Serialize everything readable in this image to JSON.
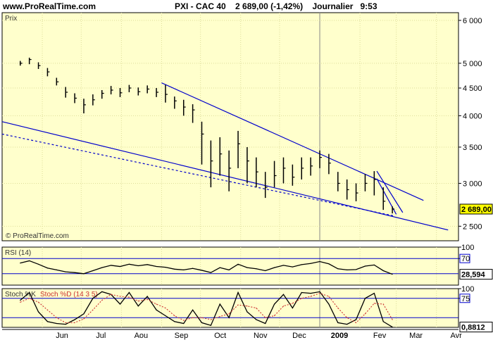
{
  "header": {
    "site": "www.ProRealTime.com",
    "instrument": "PXI - CAC 40",
    "price": "2 689,00",
    "change": "(-1,42%)",
    "period": "Journalier",
    "time": "9:53"
  },
  "watermark": "© ProRealTime.com",
  "colors": {
    "panel_bg": "#ffffcc",
    "candles": "#000000",
    "trendlines": "#0000cc",
    "highlight": "#ffff00",
    "stoch_k": "#000000",
    "stoch_d": "#cc3333"
  },
  "chart_data": [
    {
      "type": "candlestick",
      "title": "Prix",
      "ylim": [
        2350,
        6200
      ],
      "y_ticks": [
        "6 000",
        "5 000",
        "4 500",
        "4 000",
        "3 500",
        "3 000",
        "2 500"
      ],
      "y_tick_values": [
        6000,
        5000,
        4500,
        4000,
        3500,
        3000,
        2500
      ],
      "last_price_label": "2 689,00",
      "last_price": 2689,
      "x_labels": [
        "Jun",
        "Jul",
        "Aou",
        "Sep",
        "Oct",
        "Nov",
        "Dec",
        "2009",
        "Fev",
        "Mar",
        "Avr"
      ],
      "x_dates": [
        "2008-06-01",
        "2008-07-01",
        "2008-08-01",
        "2008-09-01",
        "2008-10-01",
        "2008-11-01",
        "2008-12-01",
        "2009-01-01",
        "2009-02-01",
        "2009-03-01",
        "2009-04-01"
      ],
      "series": [
        {
          "x": [
            "2008-05-15",
            "2008-05-22",
            "2008-05-29",
            "2008-06-05",
            "2008-06-12",
            "2008-06-19",
            "2008-06-26",
            "2008-07-03",
            "2008-07-10",
            "2008-07-17",
            "2008-07-24",
            "2008-07-31",
            "2008-08-07",
            "2008-08-14",
            "2008-08-21",
            "2008-08-28",
            "2008-09-04",
            "2008-09-11",
            "2008-09-18",
            "2008-09-25",
            "2008-10-02",
            "2008-10-09",
            "2008-10-16",
            "2008-10-23",
            "2008-10-30",
            "2008-11-06",
            "2008-11-13",
            "2008-11-20",
            "2008-11-27",
            "2008-12-04",
            "2008-12-11",
            "2008-12-18",
            "2008-12-25",
            "2009-01-01",
            "2009-01-08",
            "2009-01-15",
            "2009-01-22",
            "2009-01-29",
            "2009-02-05",
            "2009-02-12",
            "2009-02-19",
            "2009-02-26"
          ],
          "values": [
            5000,
            5080,
            4950,
            4820,
            4620,
            4420,
            4310,
            4190,
            4280,
            4400,
            4460,
            4410,
            4500,
            4430,
            4480,
            4420,
            4380,
            4260,
            4150,
            4100,
            3700,
            3300,
            3400,
            3200,
            3550,
            3300,
            3150,
            2950,
            3100,
            3200,
            3080,
            3200,
            3230,
            3350,
            3270,
            3000,
            2920,
            2880,
            3000,
            3050,
            2780,
            2689
          ],
          "high": [
            5050,
            5120,
            5020,
            4900,
            4700,
            4520,
            4400,
            4300,
            4380,
            4460,
            4540,
            4500,
            4560,
            4510,
            4550,
            4500,
            4560,
            4340,
            4280,
            4200,
            3900,
            3600,
            3650,
            3450,
            3750,
            3500,
            3350,
            3150,
            3300,
            3350,
            3250,
            3350,
            3350,
            3450,
            3400,
            3150,
            3050,
            3000,
            3120,
            3160,
            2950,
            2720
          ],
          "low": [
            4950,
            4980,
            4880,
            4730,
            4550,
            4320,
            4220,
            4040,
            4180,
            4300,
            4380,
            4330,
            4420,
            4360,
            4400,
            4330,
            4230,
            4120,
            4000,
            3880,
            3250,
            2950,
            3100,
            2900,
            3200,
            3000,
            2950,
            2820,
            2950,
            3000,
            2970,
            3050,
            3100,
            3200,
            3120,
            2900,
            2800,
            2780,
            2900,
            2850,
            2680,
            2640
          ]
        }
      ]
    },
    {
      "type": "line",
      "title": "RSI (14)",
      "ylim": [
        0,
        100
      ],
      "y_ticks": [
        "100",
        "70"
      ],
      "y_tick_values": [
        100,
        70
      ],
      "reference_lines": [
        70,
        30
      ],
      "last_value_label": "28,594",
      "last_value": 28.594,
      "series": [
        {
          "x": [
            "2008-05-15",
            "2008-05-22",
            "2008-05-29",
            "2008-06-05",
            "2008-06-12",
            "2008-06-19",
            "2008-06-26",
            "2008-07-03",
            "2008-07-10",
            "2008-07-17",
            "2008-07-24",
            "2008-07-31",
            "2008-08-07",
            "2008-08-14",
            "2008-08-21",
            "2008-08-28",
            "2008-09-04",
            "2008-09-11",
            "2008-09-18",
            "2008-09-25",
            "2008-10-02",
            "2008-10-09",
            "2008-10-16",
            "2008-10-23",
            "2008-10-30",
            "2008-11-06",
            "2008-11-13",
            "2008-11-20",
            "2008-11-27",
            "2008-12-04",
            "2008-12-11",
            "2008-12-18",
            "2008-12-25",
            "2009-01-01",
            "2009-01-08",
            "2009-01-15",
            "2009-01-22",
            "2009-01-29",
            "2009-02-05",
            "2009-02-12",
            "2009-02-19",
            "2009-02-26"
          ],
          "values": [
            58,
            64,
            55,
            45,
            40,
            35,
            33,
            30,
            38,
            46,
            52,
            49,
            55,
            51,
            54,
            49,
            47,
            42,
            40,
            44,
            39,
            33,
            46,
            40,
            55,
            46,
            43,
            38,
            46,
            52,
            48,
            54,
            57,
            62,
            56,
            43,
            40,
            41,
            50,
            53,
            38,
            28.594
          ]
        }
      ]
    },
    {
      "type": "line",
      "title": "Stoch %K Stoch %D (14 3 5)",
      "legend": [
        "Stoch %K",
        "Stoch %D (14 3 5)"
      ],
      "ylim": [
        0,
        100
      ],
      "y_ticks": [
        "100",
        "75"
      ],
      "y_tick_values": [
        100,
        75
      ],
      "reference_lines": [
        75,
        25
      ],
      "last_value_label": "0,8812",
      "last_value": 0.8812,
      "series": [
        {
          "name": "Stoch %K",
          "x": [
            "2008-05-15",
            "2008-05-22",
            "2008-05-29",
            "2008-06-05",
            "2008-06-12",
            "2008-06-19",
            "2008-06-26",
            "2008-07-03",
            "2008-07-10",
            "2008-07-17",
            "2008-07-24",
            "2008-07-31",
            "2008-08-07",
            "2008-08-14",
            "2008-08-21",
            "2008-08-28",
            "2008-09-04",
            "2008-09-11",
            "2008-09-18",
            "2008-09-25",
            "2008-10-02",
            "2008-10-09",
            "2008-10-16",
            "2008-10-23",
            "2008-10-30",
            "2008-11-06",
            "2008-11-13",
            "2008-11-20",
            "2008-11-27",
            "2008-12-04",
            "2008-12-11",
            "2008-12-18",
            "2008-12-25",
            "2009-01-01",
            "2009-01-08",
            "2009-01-15",
            "2009-01-22",
            "2009-01-29",
            "2009-02-05",
            "2009-02-12",
            "2009-02-19",
            "2009-02-26"
          ],
          "values": [
            70,
            90,
            40,
            15,
            10,
            8,
            20,
            35,
            75,
            92,
            85,
            60,
            90,
            55,
            80,
            45,
            30,
            15,
            10,
            45,
            12,
            5,
            60,
            25,
            90,
            40,
            20,
            10,
            60,
            85,
            50,
            90,
            88,
            92,
            60,
            12,
            8,
            20,
            75,
            88,
            15,
            0.8812
          ]
        },
        {
          "name": "Stoch %D (14 3 5)",
          "x": [
            "2008-05-15",
            "2008-05-22",
            "2008-05-29",
            "2008-06-05",
            "2008-06-12",
            "2008-06-19",
            "2008-06-26",
            "2008-07-03",
            "2008-07-10",
            "2008-07-17",
            "2008-07-24",
            "2008-07-31",
            "2008-08-07",
            "2008-08-14",
            "2008-08-21",
            "2008-08-28",
            "2008-09-04",
            "2008-09-11",
            "2008-09-18",
            "2008-09-25",
            "2008-10-02",
            "2008-10-09",
            "2008-10-16",
            "2008-10-23",
            "2008-10-30",
            "2008-11-06",
            "2008-11-13",
            "2008-11-20",
            "2008-11-27",
            "2008-12-04",
            "2008-12-11",
            "2008-12-18",
            "2008-12-25",
            "2009-01-01",
            "2009-01-08",
            "2009-01-15",
            "2009-01-22",
            "2009-01-29",
            "2009-02-05",
            "2009-02-12",
            "2009-02-19",
            "2009-02-26"
          ],
          "values": [
            65,
            75,
            65,
            45,
            25,
            12,
            12,
            22,
            45,
            70,
            85,
            80,
            78,
            68,
            72,
            60,
            50,
            30,
            18,
            25,
            25,
            20,
            28,
            35,
            58,
            55,
            50,
            25,
            30,
            55,
            62,
            75,
            80,
            88,
            80,
            50,
            25,
            12,
            35,
            62,
            60,
            20
          ]
        }
      ]
    }
  ],
  "trendlines": [
    {
      "name": "upper-resistance",
      "from": {
        "x": "2008-09-01",
        "y": 4600
      },
      "to": {
        "x": "2009-03-22",
        "y": 2790
      }
    },
    {
      "name": "lower-support",
      "from": {
        "x": "2008-05-01",
        "y": 3900
      },
      "to": {
        "x": "2009-04-10",
        "y": 2460
      }
    },
    {
      "name": "lower-dotted",
      "from": {
        "x": "2008-05-01",
        "y": 3700
      },
      "to": {
        "x": "2009-02-28",
        "y": 2610
      },
      "dotted": true
    },
    {
      "name": "wedge-upper",
      "from": {
        "x": "2009-02-14",
        "y": 3160
      },
      "to": {
        "x": "2009-03-06",
        "y": 2650
      }
    },
    {
      "name": "wedge-lower",
      "from": {
        "x": "2009-02-14",
        "y": 3060
      },
      "to": {
        "x": "2009-03-01",
        "y": 2630
      }
    }
  ]
}
